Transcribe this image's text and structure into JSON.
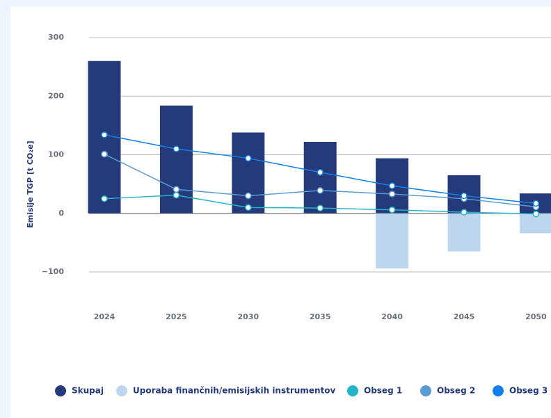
{
  "chart_data": {
    "type": "bar",
    "y_label": "Emisije TGP [t CO₂e]",
    "categories": [
      "2024",
      "2025",
      "2030",
      "2035",
      "2040",
      "2045",
      "2050"
    ],
    "series": [
      {
        "name": "Skupaj",
        "color": "#253a7a",
        "kind": "bar",
        "values": [
          260,
          184,
          138,
          122,
          94,
          65,
          34
        ]
      },
      {
        "name": "Uporaba finančnih/emisijskih instrumentov",
        "color": "#bcd6ee",
        "kind": "bar",
        "values": [
          null,
          null,
          null,
          null,
          -94,
          -65,
          -34
        ]
      },
      {
        "name": "Obseg 1",
        "color": "#22b5c9",
        "kind": "line",
        "values": [
          25,
          31,
          10,
          9,
          6,
          2,
          -1
        ]
      },
      {
        "name": "Obseg 2",
        "color": "#5b9bd5",
        "kind": "line",
        "values": [
          101,
          41,
          30,
          39,
          33,
          25,
          11
        ]
      },
      {
        "name": "Obseg 3",
        "color": "#1280e8",
        "kind": "line",
        "values": [
          134,
          110,
          94,
          70,
          47,
          30,
          17
        ]
      }
    ],
    "ylim": [
      -100,
      300
    ],
    "yticks": [
      {
        "value": -100,
        "label": "−100"
      },
      0,
      100,
      200,
      300
    ],
    "grid": true
  }
}
